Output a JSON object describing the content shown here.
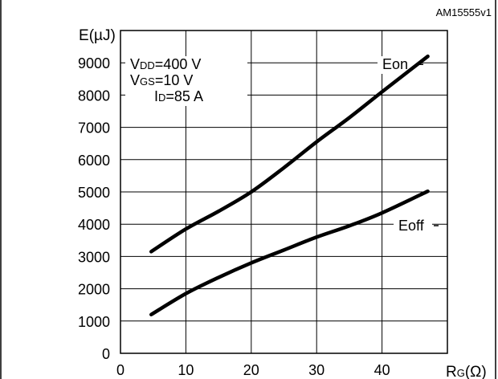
{
  "figure_id": "AM15555v1",
  "chart_data": {
    "type": "line",
    "ylabel_main": "E",
    "ylabel_unit": "(µJ)",
    "xlabel_main": "R",
    "xlabel_sub": "G",
    "xlabel_unit": "(Ω)",
    "xlim": [
      0,
      50
    ],
    "ylim": [
      0,
      10000
    ],
    "xticks": [
      0,
      10,
      20,
      30,
      40
    ],
    "yticks": [
      0,
      1000,
      2000,
      3000,
      4000,
      5000,
      6000,
      7000,
      8000,
      9000
    ],
    "conditions": [
      {
        "main": "V",
        "sub": "DD",
        "rest": "=400 V"
      },
      {
        "main": "V",
        "sub": "GS",
        "rest": "=10 V"
      },
      {
        "main": "I",
        "sub": "D",
        "rest": "=85 A"
      }
    ],
    "series": [
      {
        "name": "Eon",
        "x": [
          4.7,
          10,
          15,
          20,
          25,
          30,
          35,
          40,
          47
        ],
        "y": [
          3150,
          3850,
          4400,
          5000,
          5750,
          6550,
          7300,
          8100,
          9200
        ]
      },
      {
        "name": "Eoff",
        "x": [
          4.7,
          10,
          15,
          20,
          25,
          30,
          35,
          40,
          47
        ],
        "y": [
          1200,
          1850,
          2350,
          2800,
          3200,
          3600,
          3950,
          4350,
          5020
        ]
      }
    ]
  }
}
